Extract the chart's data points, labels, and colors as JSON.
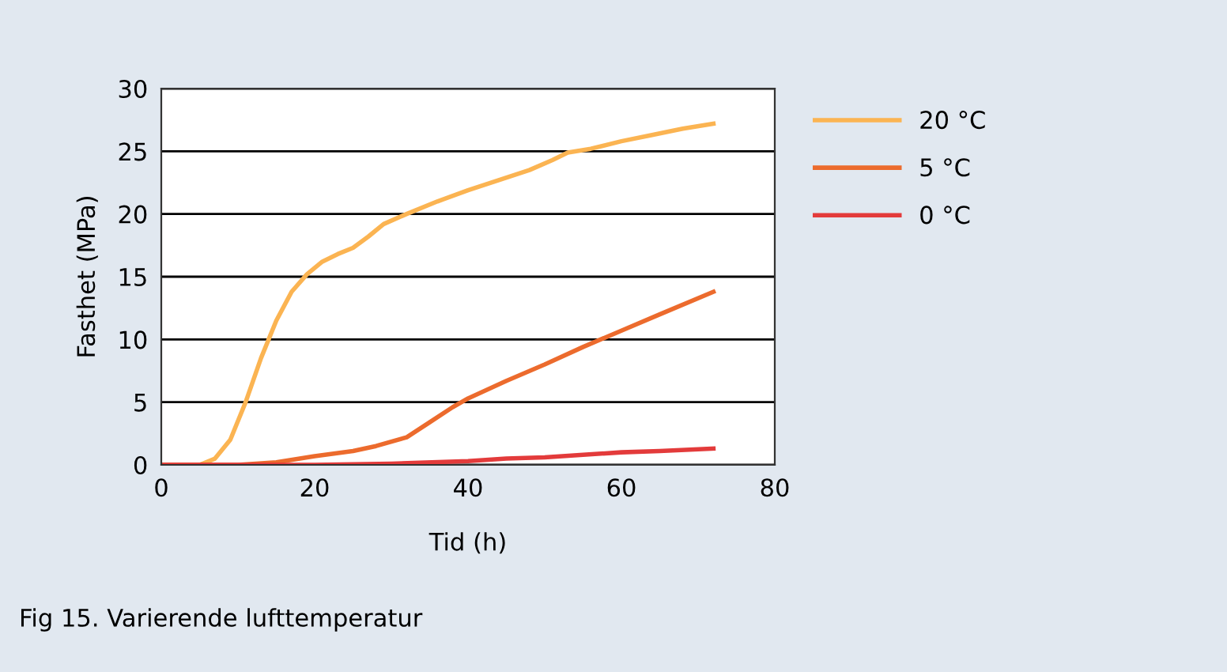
{
  "chart_data": {
    "type": "line",
    "xlabel": "Tid (h)",
    "ylabel": "Fasthet (MPa)",
    "xlim": [
      0,
      80
    ],
    "xticks": [
      0,
      20,
      40,
      60,
      80
    ],
    "ylim": [
      0,
      30
    ],
    "yticks": [
      0,
      5,
      10,
      15,
      20,
      25,
      30
    ],
    "grid": "y",
    "legend": "right",
    "marker": "none",
    "line_style": "solid",
    "annotations": [
      "Fig 15. Varierende lufttemperatur"
    ],
    "series": [
      {
        "name": "20 °C",
        "color": "#fbb452",
        "x": [
          0,
          5,
          7,
          9,
          11,
          13,
          15,
          17,
          19,
          21,
          23,
          25,
          27,
          29,
          32,
          36,
          40,
          44,
          48,
          51,
          53,
          56,
          60,
          64,
          68,
          72
        ],
        "values": [
          0,
          0,
          0.5,
          2,
          5,
          8.5,
          11.5,
          13.8,
          15.2,
          16.2,
          16.8,
          17.3,
          18.2,
          19.2,
          20,
          21,
          21.9,
          22.7,
          23.5,
          24.3,
          24.9,
          25.2,
          25.8,
          26.3,
          26.8,
          27.2
        ]
      },
      {
        "name": "5 °C",
        "color": "#ec6b2d",
        "x": [
          0,
          10,
          15,
          20,
          25,
          28,
          32,
          35,
          38,
          40,
          45,
          50,
          55,
          60,
          65,
          72
        ],
        "values": [
          0,
          0,
          0.2,
          0.7,
          1.1,
          1.5,
          2.2,
          3.4,
          4.6,
          5.3,
          6.7,
          8,
          9.4,
          10.7,
          12,
          13.8
        ]
      },
      {
        "name": "0 °C",
        "color": "#e33b3b",
        "x": [
          0,
          20,
          30,
          40,
          45,
          50,
          55,
          60,
          65,
          72
        ],
        "values": [
          0,
          0,
          0.1,
          0.3,
          0.5,
          0.6,
          0.8,
          1.0,
          1.1,
          1.3
        ]
      }
    ]
  }
}
